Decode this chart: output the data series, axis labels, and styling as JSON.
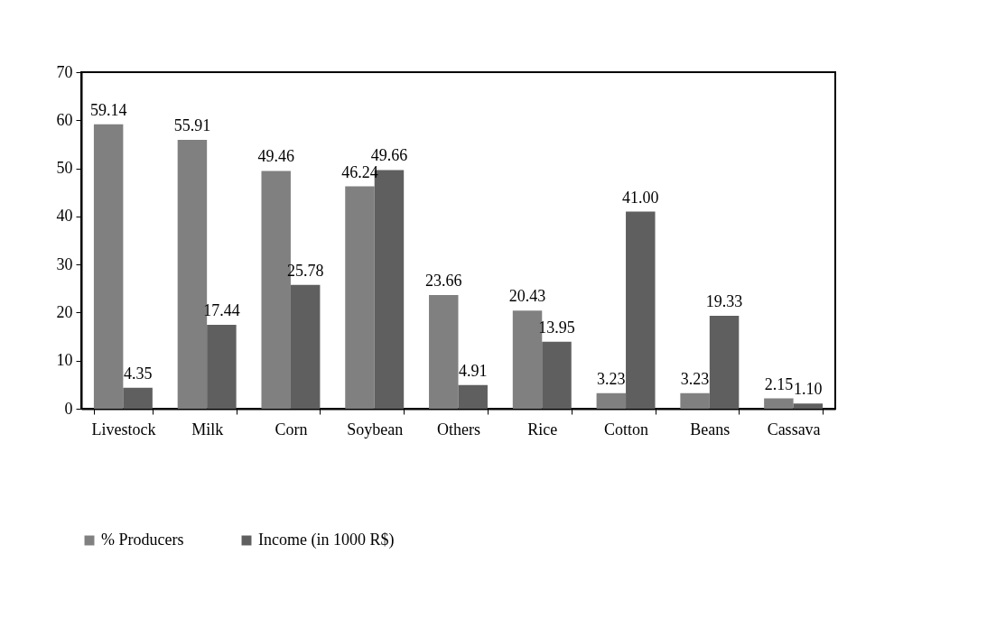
{
  "chart_data": {
    "type": "bar",
    "categories": [
      "Livestock",
      "Milk",
      "Corn",
      "Soybean",
      "Others",
      "Rice",
      "Cotton",
      "Beans",
      "Cassava"
    ],
    "series": [
      {
        "name": "% Producers",
        "color": "#808080",
        "values": [
          59.14,
          55.91,
          49.46,
          46.24,
          23.66,
          20.43,
          3.23,
          3.23,
          2.15
        ],
        "value_labels": [
          "59.14",
          "55.91",
          "49.46",
          "46.24",
          "23.66",
          "20.43",
          "3.23",
          "3.23",
          "2.15"
        ]
      },
      {
        "name": "Income (in 1000 R$)",
        "color": "#5f5f5f",
        "values": [
          4.35,
          17.44,
          25.78,
          49.66,
          4.91,
          13.95,
          41.0,
          19.33,
          1.1
        ],
        "value_labels": [
          "4.35",
          "17.44",
          "25.78",
          "49.66",
          "4.91",
          "13.95",
          "41.00",
          "19.33",
          "1.10"
        ]
      }
    ],
    "ylim": [
      0,
      70
    ],
    "yticks": [
      0,
      10,
      20,
      30,
      40,
      50,
      60,
      70
    ],
    "grid": false,
    "legend": "bottom"
  }
}
